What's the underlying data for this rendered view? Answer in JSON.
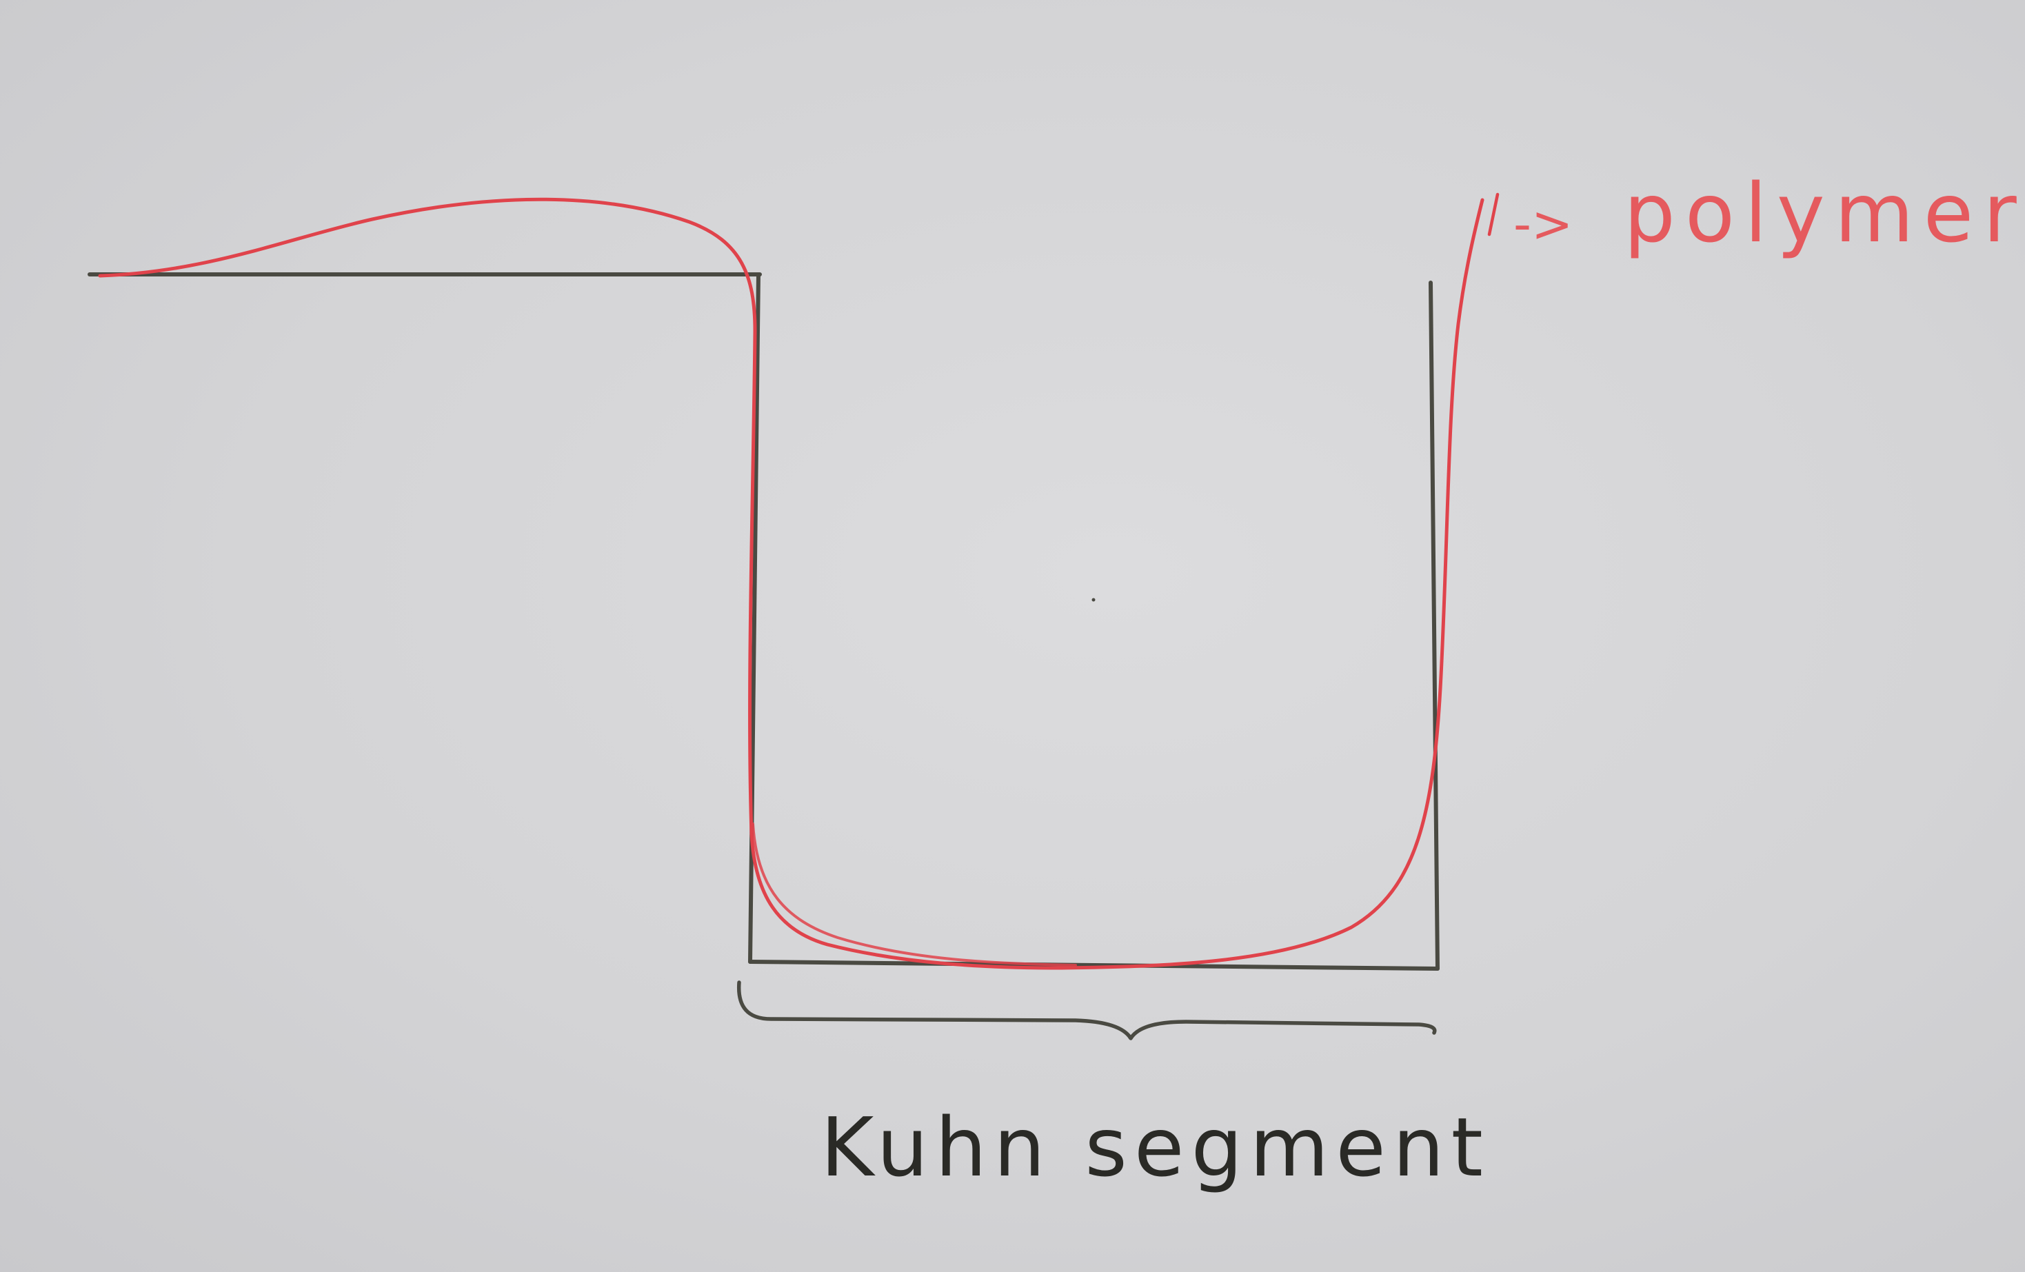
{
  "labels": {
    "polymer": "polymer",
    "polymer_arrow": "->",
    "kuhn_segment": "Kuhn segment"
  },
  "colors": {
    "paper": "#d6d6d8",
    "pencil": "#4a4a42",
    "polymer_red": "#e0434b",
    "text_red": "#e55a5e",
    "text_dark": "#2a2a26"
  }
}
